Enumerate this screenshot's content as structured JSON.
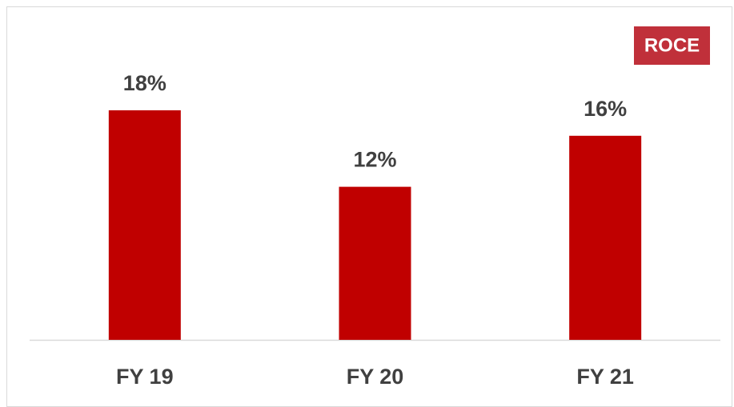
{
  "chart_data": {
    "type": "bar",
    "title": "ROCE",
    "categories": [
      "FY 19",
      "FY 20",
      "FY 21"
    ],
    "values": [
      18,
      12,
      16
    ],
    "value_labels": [
      "18%",
      "12%",
      "16%"
    ],
    "color": "#c00000",
    "ylim": [
      0,
      20
    ]
  }
}
